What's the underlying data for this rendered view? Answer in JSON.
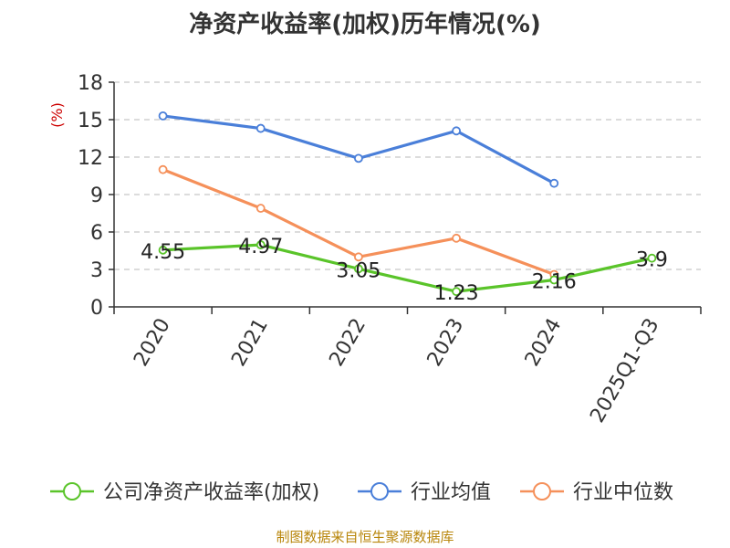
{
  "chart_data": {
    "type": "line",
    "title": "净资产收益率(加权)历年情况(%)",
    "ylabel": "(%)",
    "xlabel": "",
    "categories": [
      "2020",
      "2021",
      "2022",
      "2023",
      "2024",
      "2025Q1-Q3"
    ],
    "ylim": [
      0,
      18
    ],
    "yticks": [
      "0",
      "3",
      "6",
      "9",
      "12",
      "15",
      "18"
    ],
    "grid": true,
    "legend_position": "bottom",
    "series": [
      {
        "name": "公司净资产收益率(加权)",
        "color": "#5ac42a",
        "values": [
          4.55,
          4.97,
          3.05,
          1.23,
          2.16,
          3.9
        ],
        "labels": [
          "4.55",
          "4.97",
          "3.05",
          "1.23",
          "2.16",
          "3.9"
        ]
      },
      {
        "name": "行业均值",
        "color": "#4a7fd9",
        "values": [
          15.3,
          14.3,
          11.9,
          14.1,
          9.9,
          null
        ]
      },
      {
        "name": "行业中位数",
        "color": "#f5905a",
        "values": [
          11.0,
          7.9,
          4.0,
          5.5,
          2.6,
          null
        ]
      }
    ]
  },
  "source": "制图数据来自恒生聚源数据库"
}
